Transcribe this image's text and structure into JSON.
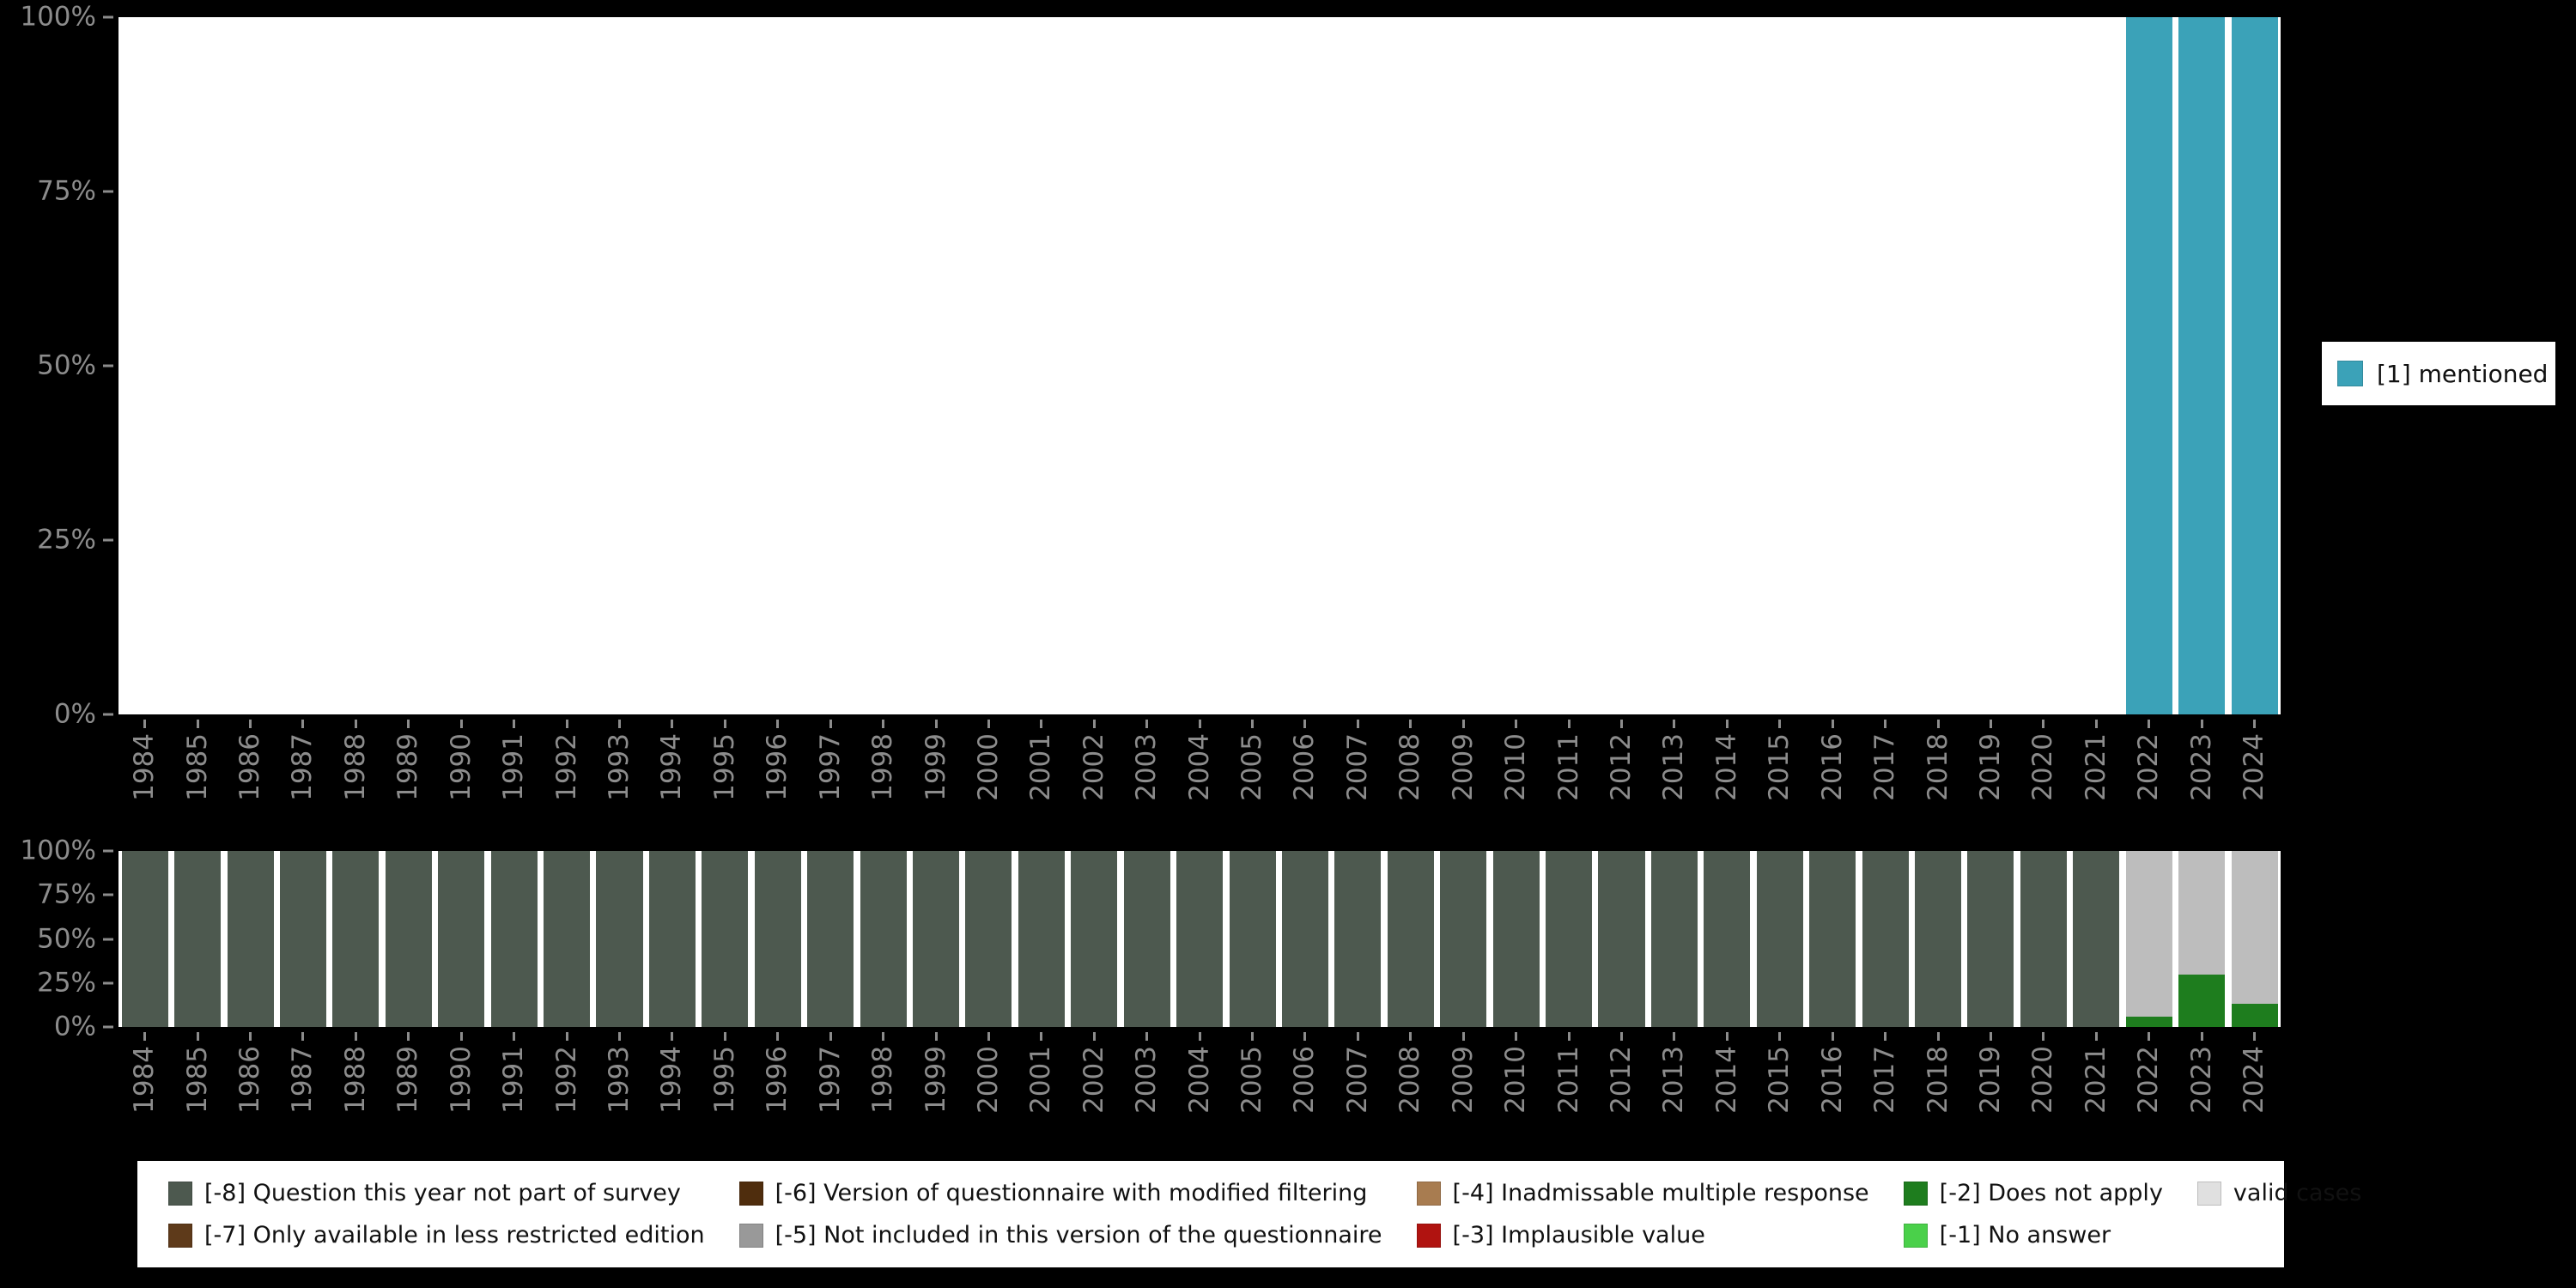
{
  "page": {
    "background": "#000000",
    "plot_background": "#ffffff",
    "axis_text_color": "#8c8c8c"
  },
  "y_axis": {
    "ticks": [
      "100%",
      "75%",
      "50%",
      "25%",
      "0%"
    ]
  },
  "legend_right": {
    "label": "[1] mentioned",
    "color": "#3ba2b8"
  },
  "legend_bottom": {
    "items": [
      {
        "label": "[-8] Question this year not part of survey",
        "color": "#4d594f"
      },
      {
        "label": "[-6] Version of questionnaire with modified filtering",
        "color": "#4f2d0d"
      },
      {
        "label": "[-4] Inadmissable multiple response",
        "color": "#a87c50"
      },
      {
        "label": "[-2] Does not apply",
        "color": "#1e7d1e"
      },
      {
        "label": "valid cases",
        "color": "#e0e0e0"
      },
      {
        "label": "[-7] Only available in less restricted edition",
        "color": "#5e3a1a"
      },
      {
        "label": "[-5] Not included in this version of the questionnaire",
        "color": "#999999"
      },
      {
        "label": "[-3] Implausible value",
        "color": "#b01310"
      },
      {
        "label": "[-1] No answer",
        "color": "#4ad04a"
      }
    ]
  },
  "chart_data": [
    {
      "type": "bar",
      "stacked": true,
      "title": "",
      "xlabel": "",
      "ylabel": "",
      "ylim": [
        0,
        100
      ],
      "yticks": [
        "0%",
        "25%",
        "50%",
        "75%",
        "100%"
      ],
      "legend_position": "right",
      "grid": false,
      "categories": [
        1984,
        1985,
        1986,
        1987,
        1988,
        1989,
        1990,
        1991,
        1992,
        1993,
        1994,
        1995,
        1996,
        1997,
        1998,
        1999,
        2000,
        2001,
        2002,
        2003,
        2004,
        2005,
        2006,
        2007,
        2008,
        2009,
        2010,
        2011,
        2012,
        2013,
        2014,
        2015,
        2016,
        2017,
        2018,
        2019,
        2020,
        2021,
        2022,
        2023,
        2024
      ],
      "series": [
        {
          "name": "[1] mentioned",
          "color": "#3ba2b8",
          "values": [
            0,
            0,
            0,
            0,
            0,
            0,
            0,
            0,
            0,
            0,
            0,
            0,
            0,
            0,
            0,
            0,
            0,
            0,
            0,
            0,
            0,
            0,
            0,
            0,
            0,
            0,
            0,
            0,
            0,
            0,
            0,
            0,
            0,
            0,
            0,
            0,
            0,
            0,
            100,
            100,
            100
          ]
        }
      ]
    },
    {
      "type": "bar",
      "stacked": true,
      "title": "",
      "xlabel": "",
      "ylabel": "",
      "ylim": [
        0,
        100
      ],
      "yticks": [
        "0%",
        "25%",
        "50%",
        "75%",
        "100%"
      ],
      "legend_position": "bottom",
      "grid": false,
      "categories": [
        1984,
        1985,
        1986,
        1987,
        1988,
        1989,
        1990,
        1991,
        1992,
        1993,
        1994,
        1995,
        1996,
        1997,
        1998,
        1999,
        2000,
        2001,
        2002,
        2003,
        2004,
        2005,
        2006,
        2007,
        2008,
        2009,
        2010,
        2011,
        2012,
        2013,
        2014,
        2015,
        2016,
        2017,
        2018,
        2019,
        2020,
        2021,
        2022,
        2023,
        2024
      ],
      "series": [
        {
          "name": "[-8] Question this year not part of survey",
          "color": "#4d594f",
          "values": [
            100,
            100,
            100,
            100,
            100,
            100,
            100,
            100,
            100,
            100,
            100,
            100,
            100,
            100,
            100,
            100,
            100,
            100,
            100,
            100,
            100,
            100,
            100,
            100,
            100,
            100,
            100,
            100,
            100,
            100,
            100,
            100,
            100,
            100,
            100,
            100,
            100,
            100,
            0,
            0,
            0
          ]
        },
        {
          "name": "[-2] Does not apply",
          "color": "#1e7d1e",
          "values": [
            0,
            0,
            0,
            0,
            0,
            0,
            0,
            0,
            0,
            0,
            0,
            0,
            0,
            0,
            0,
            0,
            0,
            0,
            0,
            0,
            0,
            0,
            0,
            0,
            0,
            0,
            0,
            0,
            0,
            0,
            0,
            0,
            0,
            0,
            0,
            0,
            0,
            0,
            6,
            30,
            13
          ]
        },
        {
          "name": "valid cases",
          "color": "#bdbdbd",
          "values": [
            0,
            0,
            0,
            0,
            0,
            0,
            0,
            0,
            0,
            0,
            0,
            0,
            0,
            0,
            0,
            0,
            0,
            0,
            0,
            0,
            0,
            0,
            0,
            0,
            0,
            0,
            0,
            0,
            0,
            0,
            0,
            0,
            0,
            0,
            0,
            0,
            0,
            0,
            94,
            70,
            87
          ]
        }
      ]
    }
  ]
}
